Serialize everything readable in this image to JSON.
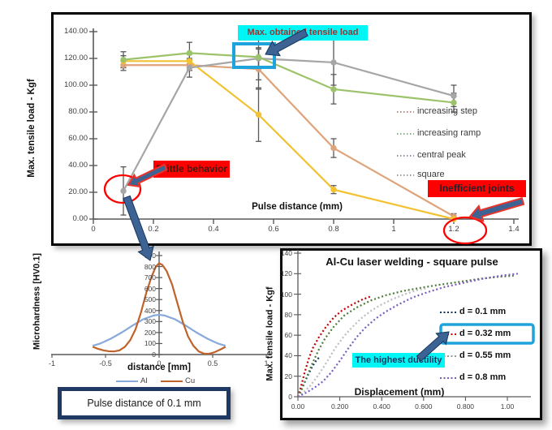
{
  "figure": {
    "description_labels": {
      "main_y": "Max. tensile load - Kgf",
      "main_x": "Pulse distance (mm)"
    }
  },
  "chart_data": [
    {
      "type": "line",
      "title": "",
      "xlabel": "Pulse distance (mm)",
      "ylabel": "Max. tensile load - Kgf",
      "xlim": [
        0,
        1.4
      ],
      "ylim": [
        0,
        140
      ],
      "x": [
        0.1,
        0.32,
        0.55,
        0.8,
        1.2
      ],
      "x_ticks": [
        [
          0,
          "0"
        ],
        [
          0.2,
          "0.2"
        ],
        [
          0.4,
          "0.4"
        ],
        [
          0.6,
          "0.6"
        ],
        [
          0.8,
          "0.8"
        ],
        [
          1,
          "1"
        ],
        [
          1.2,
          "1.2"
        ],
        [
          1.4,
          "1.4"
        ]
      ],
      "y_ticks": [
        [
          0,
          "0.00"
        ],
        [
          20,
          "20.00"
        ],
        [
          40,
          "40.00"
        ],
        [
          60,
          "60.00"
        ],
        [
          80,
          "80.00"
        ],
        [
          100,
          "100.00"
        ],
        [
          120,
          "120.00"
        ],
        [
          140,
          "140.00"
        ]
      ],
      "legend_position": "right-inside",
      "series": [
        {
          "name": "increasing step",
          "line_color": "#DFA379",
          "legend_color": "#C0504D",
          "values": [
            115,
            115,
            112,
            53,
            2
          ],
          "errors": [
            4,
            4,
            15,
            7,
            2
          ]
        },
        {
          "name": "increasing ramp",
          "line_color": "#9CC36A",
          "legend_color": "#4AA34A",
          "values": [
            119,
            124,
            121,
            97,
            87
          ],
          "errors": [
            6,
            8,
            7,
            11,
            7
          ]
        },
        {
          "name": "central peak",
          "line_color": "#F2C232",
          "legend_color": "#7B68A6",
          "values": [
            118,
            118,
            78,
            22,
            0
          ],
          "errors": [
            4,
            5,
            20,
            3,
            1
          ]
        },
        {
          "name": "square",
          "line_color": "#A6A6A6",
          "legend_color": "#7F7F7F",
          "values": [
            21,
            113,
            120,
            117,
            92
          ],
          "errors": [
            18,
            7,
            16,
            17,
            8
          ]
        }
      ],
      "annotations": {
        "max_obtained": "Max. obtained tensile load",
        "brittle": "Brittle behavior",
        "inefficient": "Inefficient joints"
      }
    },
    {
      "type": "line",
      "xlabel": "distance [mm]",
      "ylabel": "Microhardness [HV0.1]",
      "xlim": [
        -1,
        1
      ],
      "ylim": [
        0,
        900
      ],
      "x_ticks": [
        [
          -1,
          "-1"
        ],
        [
          -0.5,
          "-0.5"
        ],
        [
          0,
          "0"
        ],
        [
          0.5,
          "0.5"
        ],
        [
          1,
          "1"
        ]
      ],
      "y_ticks": [
        [
          0,
          "0"
        ],
        [
          100,
          "100"
        ],
        [
          200,
          "200"
        ],
        [
          300,
          "300"
        ],
        [
          400,
          "400"
        ],
        [
          500,
          "500"
        ],
        [
          600,
          "600"
        ],
        [
          700,
          "700"
        ],
        [
          800,
          "800"
        ],
        [
          900,
          "900"
        ]
      ],
      "series": [
        {
          "name": "Al",
          "color": "#87A9DC",
          "points": [
            [
              -0.62,
              80
            ],
            [
              -0.55,
              100
            ],
            [
              -0.45,
              145
            ],
            [
              -0.35,
              200
            ],
            [
              -0.25,
              262
            ],
            [
              -0.15,
              320
            ],
            [
              -0.05,
              355
            ],
            [
              0,
              362
            ],
            [
              0.05,
              355
            ],
            [
              0.15,
              320
            ],
            [
              0.25,
              262
            ],
            [
              0.35,
              200
            ],
            [
              0.45,
              145
            ],
            [
              0.55,
              100
            ],
            [
              0.62,
              80
            ]
          ]
        },
        {
          "name": "Cu",
          "color": "#C0622B",
          "points": [
            [
              -0.62,
              70
            ],
            [
              -0.57,
              52
            ],
            [
              -0.52,
              38
            ],
            [
              -0.47,
              30
            ],
            [
              -0.42,
              28
            ],
            [
              -0.37,
              38
            ],
            [
              -0.32,
              70
            ],
            [
              -0.27,
              130
            ],
            [
              -0.22,
              230
            ],
            [
              -0.17,
              380
            ],
            [
              -0.12,
              560
            ],
            [
              -0.07,
              710
            ],
            [
              -0.03,
              800
            ],
            [
              0,
              830
            ],
            [
              0.03,
              815
            ],
            [
              0.07,
              760
            ],
            [
              0.12,
              640
            ],
            [
              0.17,
              470
            ],
            [
              0.22,
              300
            ],
            [
              0.27,
              165
            ],
            [
              0.32,
              80
            ],
            [
              0.37,
              28
            ],
            [
              0.42,
              8
            ],
            [
              0.47,
              8
            ],
            [
              0.52,
              22
            ],
            [
              0.57,
              45
            ],
            [
              0.62,
              70
            ]
          ]
        }
      ],
      "caption": "Pulse distance of 0.1 mm"
    },
    {
      "type": "line",
      "title": "Al-Cu laser welding - square pulse",
      "xlabel": "Displacement (mm)",
      "ylabel": "Max. tensile load - Kgf",
      "xlim": [
        0,
        1.1
      ],
      "ylim": [
        0,
        140
      ],
      "x_ticks": [
        [
          0,
          "0.00"
        ],
        [
          0.2,
          "0.200"
        ],
        [
          0.4,
          "0.400"
        ],
        [
          0.6,
          "0.600"
        ],
        [
          0.8,
          "0.800"
        ],
        [
          1,
          "1.00"
        ]
      ],
      "y_ticks": [
        [
          0,
          "0"
        ],
        [
          20,
          "20"
        ],
        [
          40,
          "40"
        ],
        [
          60,
          "60"
        ],
        [
          80,
          "80"
        ],
        [
          100,
          "100"
        ],
        [
          120,
          "120"
        ],
        [
          140,
          "140"
        ]
      ],
      "legend": [
        {
          "label": "d = 0.1 mm",
          "color": "#17375E"
        },
        {
          "label": "d = 0.32 mm",
          "color": "#C00000"
        },
        {
          "label": "d = 0.55 mm",
          "color": "#8F9B8F"
        },
        {
          "label": "d = 0.8 mm",
          "color": "#7A5CC0"
        }
      ],
      "curves": [
        {
          "legend": "d = 0.1 mm",
          "color": "#17375E",
          "points": [
            [
              0,
              0
            ],
            [
              0.015,
              6
            ],
            [
              0.03,
              13
            ],
            [
              0.05,
              22
            ],
            [
              0.07,
              30
            ],
            [
              0.09,
              36
            ],
            [
              0.1,
              38
            ]
          ]
        },
        {
          "legend": "d = 0.32 mm",
          "color": "#C00000",
          "points": [
            [
              0,
              0
            ],
            [
              0.015,
              10
            ],
            [
              0.03,
              22
            ],
            [
              0.05,
              36
            ],
            [
              0.07,
              47
            ],
            [
              0.1,
              58
            ],
            [
              0.13,
              67
            ],
            [
              0.17,
              77
            ],
            [
              0.21,
              84
            ],
            [
              0.26,
              90
            ],
            [
              0.31,
              95
            ],
            [
              0.35,
              98
            ]
          ]
        },
        {
          "legend": "d = 0.55 mm",
          "color": "#4E7A3A",
          "points": [
            [
              0,
              0
            ],
            [
              0.02,
              8
            ],
            [
              0.04,
              18
            ],
            [
              0.07,
              33
            ],
            [
              0.1,
              46
            ],
            [
              0.13,
              57
            ],
            [
              0.17,
              68
            ],
            [
              0.22,
              79
            ],
            [
              0.28,
              87
            ],
            [
              0.35,
              94
            ],
            [
              0.42,
              99
            ],
            [
              0.5,
              103
            ],
            [
              0.58,
              106
            ],
            [
              0.67,
              109
            ],
            [
              0.77,
              112
            ],
            [
              0.87,
              115
            ],
            [
              0.96,
              117
            ],
            [
              1.03,
              118
            ]
          ]
        },
        {
          "legend": "d = 0.55 mm",
          "color": "#BDBDBD",
          "points": [
            [
              0,
              0
            ],
            [
              0.03,
              5
            ],
            [
              0.06,
              11
            ],
            [
              0.09,
              19
            ],
            [
              0.12,
              28
            ],
            [
              0.15,
              38
            ],
            [
              0.18,
              48
            ],
            [
              0.22,
              59
            ],
            [
              0.26,
              68
            ],
            [
              0.3,
              76
            ],
            [
              0.35,
              84
            ],
            [
              0.4,
              90
            ],
            [
              0.45,
              95
            ],
            [
              0.51,
              100
            ],
            [
              0.57,
              104
            ],
            [
              0.62,
              106
            ]
          ]
        },
        {
          "legend": "d = 0.8 mm",
          "color": "#7A5CC0",
          "points": [
            [
              0,
              0
            ],
            [
              0.04,
              4
            ],
            [
              0.08,
              9
            ],
            [
              0.12,
              15
            ],
            [
              0.16,
              24
            ],
            [
              0.2,
              35
            ],
            [
              0.24,
              47
            ],
            [
              0.28,
              58
            ],
            [
              0.32,
              67
            ],
            [
              0.37,
              76
            ],
            [
              0.42,
              83
            ],
            [
              0.48,
              90
            ],
            [
              0.55,
              97
            ],
            [
              0.62,
              102
            ],
            [
              0.7,
              107
            ],
            [
              0.79,
              111
            ],
            [
              0.88,
              115
            ],
            [
              0.97,
              118
            ],
            [
              1.05,
              120
            ]
          ]
        }
      ],
      "annotation": "The highest ductility"
    }
  ],
  "colors": {
    "annotation_blue": "#1FA3DC",
    "arrow_fill": "#3D6394",
    "arrow_edge": "#17375E",
    "alert_red": "#FE0000",
    "highlight_cyan": "#00F5F5"
  }
}
